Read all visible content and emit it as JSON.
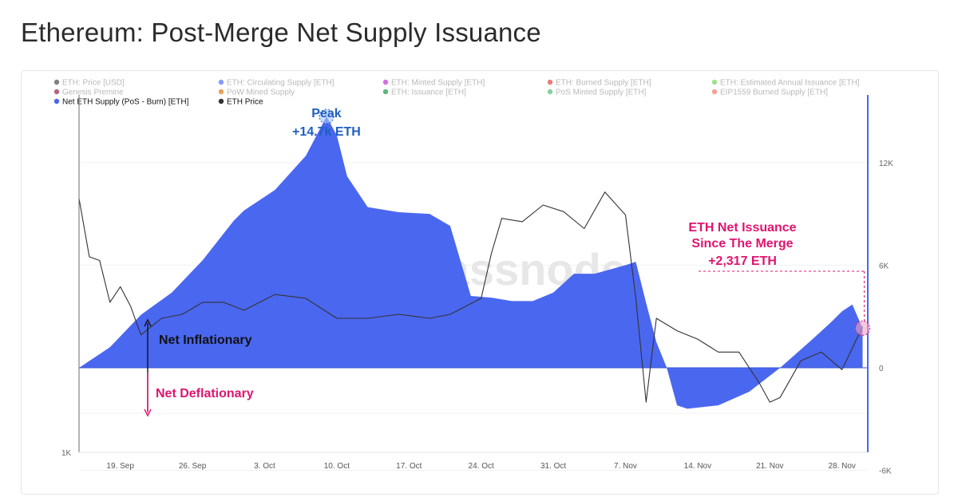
{
  "page": {
    "title": "Ethereum: Post-Merge Net Supply Issuance"
  },
  "colors": {
    "area_fill": "#4a67f0",
    "price_line": "#333333",
    "peak_annotation": "#1f5fbf",
    "deflation_annotation": "#e0146f",
    "inflation_annotation": "#111111",
    "right_axis_line": "#4a67f0"
  },
  "legend": [
    {
      "label": "ETH: Price [USD]",
      "color": "#555555",
      "active": false
    },
    {
      "label": "ETH: Circulating Supply [ETH]",
      "color": "#5b7bf0",
      "active": false
    },
    {
      "label": "ETH: Minted Supply [ETH]",
      "color": "#c740d6",
      "active": false
    },
    {
      "label": "ETH: Burned Supply [ETH]",
      "color": "#e05050",
      "active": false
    },
    {
      "label": "ETH: Estimated Annual Issuance [ETH]",
      "color": "#7bd66a",
      "active": false
    },
    {
      "label": "Genesis Premine",
      "color": "#a03050",
      "active": false
    },
    {
      "label": "PoW Mined Supply",
      "color": "#e08020",
      "active": false
    },
    {
      "label": "ETH: Issuance [ETH]",
      "color": "#2aa050",
      "active": false
    },
    {
      "label": "PoS Minted Supply [ETH]",
      "color": "#60c080",
      "active": false
    },
    {
      "label": "EIP1559 Burned Supply [ETH]",
      "color": "#f08070",
      "active": false
    },
    {
      "label": "Net ETH Supply (PoS - Burn) [ETH]",
      "color": "#4a67f0",
      "active": true
    },
    {
      "label": "ETH Price",
      "color": "#333333",
      "active": true
    }
  ],
  "annotations": {
    "peak_line1": "Peak",
    "peak_line2": "+14.7k ETH",
    "net_inflationary": "Net Inflationary",
    "net_deflationary": "Net Deflationary",
    "since_merge_line1": "ETH Net Issuance",
    "since_merge_line2": "Since The Merge",
    "since_merge_line3": "+2,317 ETH",
    "watermark": "glassnode"
  },
  "chart_data": {
    "type": "area",
    "title": "Ethereum: Post-Merge Net Supply Issuance",
    "x_ticks": [
      "19. Sep",
      "26. Sep",
      "3. Oct",
      "10. Oct",
      "17. Oct",
      "24. Oct",
      "31. Oct",
      "7. Nov",
      "14. Nov",
      "21. Nov",
      "28. Nov"
    ],
    "right_axis": {
      "ticks": [
        "12K",
        "6K",
        "0",
        "-6K"
      ],
      "tick_values": [
        12000,
        6000,
        0,
        -6000
      ],
      "ylim": [
        -6000,
        16000
      ]
    },
    "left_axis": {
      "ticks": [
        "1K"
      ],
      "scale": "log"
    },
    "series": [
      {
        "name": "Net ETH Supply (PoS - Burn) [ETH]",
        "axis": "right",
        "points": [
          [
            "2022-09-15",
            0
          ],
          [
            "2022-09-18",
            1200
          ],
          [
            "2022-09-21",
            3100
          ],
          [
            "2022-09-24",
            4400
          ],
          [
            "2022-09-27",
            6300
          ],
          [
            "2022-09-30",
            8600
          ],
          [
            "2022-10-01",
            9200
          ],
          [
            "2022-10-04",
            10400
          ],
          [
            "2022-10-07",
            12400
          ],
          [
            "2022-10-09",
            14700
          ],
          [
            "2022-10-10",
            13600
          ],
          [
            "2022-10-11",
            11200
          ],
          [
            "2022-10-13",
            9400
          ],
          [
            "2022-10-16",
            9100
          ],
          [
            "2022-10-19",
            9000
          ],
          [
            "2022-10-21",
            8300
          ],
          [
            "2022-10-23",
            4200
          ],
          [
            "2022-10-25",
            4100
          ],
          [
            "2022-10-27",
            3900
          ],
          [
            "2022-10-29",
            3900
          ],
          [
            "2022-10-31",
            4400
          ],
          [
            "2022-11-02",
            5500
          ],
          [
            "2022-11-04",
            5500
          ],
          [
            "2022-11-07",
            6000
          ],
          [
            "2022-11-08",
            6200
          ],
          [
            "2022-11-09",
            3800
          ],
          [
            "2022-11-10",
            1500
          ],
          [
            "2022-11-11",
            0
          ],
          [
            "2022-11-12",
            -2200
          ],
          [
            "2022-11-13",
            -2400
          ],
          [
            "2022-11-16",
            -2200
          ],
          [
            "2022-11-19",
            -1400
          ],
          [
            "2022-11-22",
            0
          ],
          [
            "2022-11-25",
            1600
          ],
          [
            "2022-11-27",
            2700
          ],
          [
            "2022-11-28",
            3300
          ],
          [
            "2022-11-29",
            3700
          ],
          [
            "2022-11-30",
            2317
          ]
        ]
      },
      {
        "name": "ETH Price",
        "axis": "left",
        "points": [
          [
            "2022-09-15",
            1620
          ],
          [
            "2022-09-16",
            1450
          ],
          [
            "2022-09-17",
            1440
          ],
          [
            "2022-09-18",
            1330
          ],
          [
            "2022-09-19",
            1370
          ],
          [
            "2022-09-20",
            1320
          ],
          [
            "2022-09-21",
            1250
          ],
          [
            "2022-09-23",
            1290
          ],
          [
            "2022-09-25",
            1300
          ],
          [
            "2022-09-27",
            1330
          ],
          [
            "2022-09-29",
            1330
          ],
          [
            "2022-10-01",
            1310
          ],
          [
            "2022-10-04",
            1350
          ],
          [
            "2022-10-07",
            1340
          ],
          [
            "2022-10-10",
            1290
          ],
          [
            "2022-10-13",
            1290
          ],
          [
            "2022-10-16",
            1300
          ],
          [
            "2022-10-19",
            1290
          ],
          [
            "2022-10-21",
            1300
          ],
          [
            "2022-10-24",
            1340
          ],
          [
            "2022-10-25",
            1460
          ],
          [
            "2022-10-26",
            1560
          ],
          [
            "2022-10-28",
            1550
          ],
          [
            "2022-10-30",
            1600
          ],
          [
            "2022-11-01",
            1580
          ],
          [
            "2022-11-03",
            1530
          ],
          [
            "2022-11-05",
            1640
          ],
          [
            "2022-11-07",
            1570
          ],
          [
            "2022-11-08",
            1340
          ],
          [
            "2022-11-09",
            1100
          ],
          [
            "2022-11-10",
            1290
          ],
          [
            "2022-11-12",
            1260
          ],
          [
            "2022-11-14",
            1240
          ],
          [
            "2022-11-16",
            1210
          ],
          [
            "2022-11-18",
            1210
          ],
          [
            "2022-11-20",
            1140
          ],
          [
            "2022-11-21",
            1100
          ],
          [
            "2022-11-22",
            1110
          ],
          [
            "2022-11-24",
            1190
          ],
          [
            "2022-11-26",
            1210
          ],
          [
            "2022-11-28",
            1170
          ],
          [
            "2022-11-30",
            1270
          ]
        ]
      }
    ],
    "grid": true,
    "legend_position": "top"
  }
}
